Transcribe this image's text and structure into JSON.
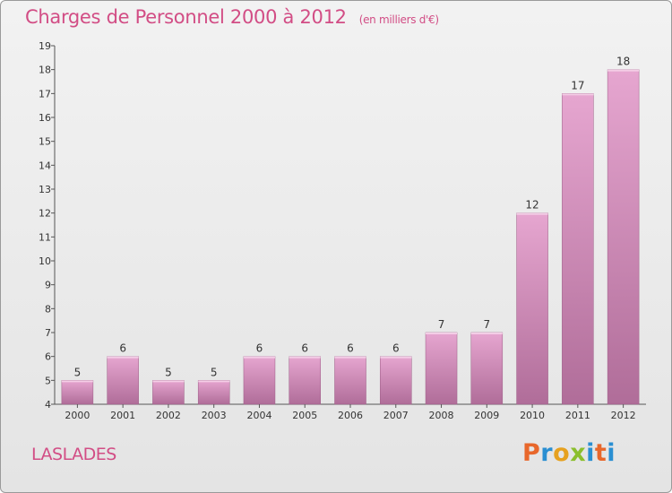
{
  "header": {
    "title": "Charges de Personnel 2000 à 2012",
    "subtitle": "(en milliers d'€)"
  },
  "footer": {
    "location": "LASLADES",
    "brand": "Proxiti"
  },
  "colors": {
    "accent": "#d24d85",
    "bar_top": "#e6a6d0",
    "bar_bottom": "#b06d99"
  },
  "chart_data": {
    "type": "bar",
    "title": "Charges de Personnel 2000 à 2012",
    "subtitle": "(en milliers d'€)",
    "categories": [
      "2000",
      "2001",
      "2002",
      "2003",
      "2004",
      "2005",
      "2006",
      "2007",
      "2008",
      "2009",
      "2010",
      "2011",
      "2012"
    ],
    "values": [
      5,
      6,
      5,
      5,
      6,
      6,
      6,
      6,
      7,
      7,
      12,
      17,
      18
    ],
    "data_labels": [
      "5",
      "6",
      "5",
      "5",
      "6",
      "6",
      "6",
      "6",
      "7",
      "7",
      "12",
      "17",
      "18"
    ],
    "ylim": [
      4,
      19
    ],
    "yticks": [
      4,
      5,
      6,
      7,
      8,
      9,
      10,
      11,
      12,
      13,
      14,
      15,
      16,
      17,
      18,
      19
    ],
    "grid": false,
    "legend": "none"
  }
}
